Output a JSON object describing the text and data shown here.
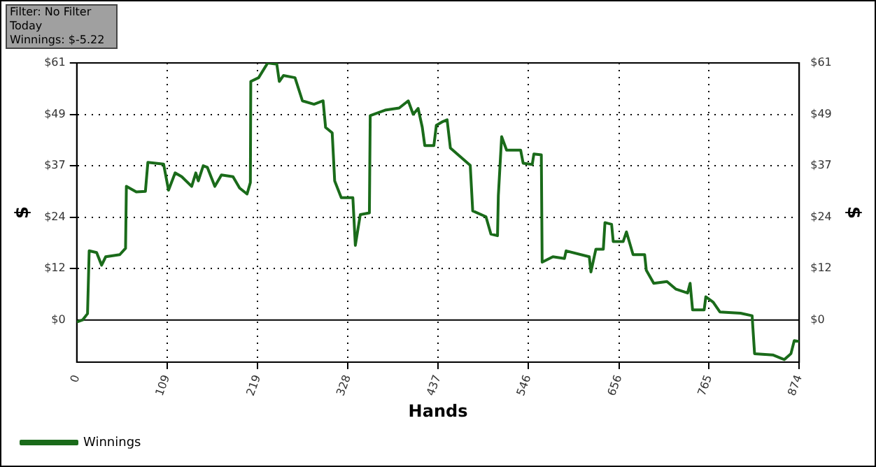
{
  "chart_data": {
    "type": "line",
    "xlabel": "Hands",
    "ylabel": "$",
    "y2label": "$",
    "annotations": [
      "Filter: No Filter",
      "Today",
      "Winnings: $-5.22"
    ],
    "x": [
      0,
      7,
      13,
      15,
      24,
      30,
      35,
      52,
      59,
      60,
      72,
      83,
      86,
      105,
      111,
      119,
      127,
      139,
      144,
      147,
      153,
      158,
      167,
      175,
      189,
      197,
      206,
      210,
      210.5,
      220,
      231,
      242,
      245,
      250,
      264,
      273,
      287,
      298,
      301,
      309,
      312,
      320,
      334,
      337,
      343,
      354,
      355,
      373,
      390,
      401,
      407,
      413,
      418,
      421,
      432,
      435,
      443,
      448,
      452,
      476,
      479,
      495,
      501,
      509,
      510,
      514,
      520,
      537,
      540,
      551,
      553,
      562,
      563,
      576,
      590,
      592,
      620,
      622,
      628,
      637,
      639,
      647,
      649,
      661,
      665,
      673,
      687,
      689,
      698,
      714,
      725,
      739,
      742,
      745,
      759,
      761,
      770,
      778,
      803,
      817,
      820,
      842,
      856,
      864,
      868,
      874
    ],
    "series": [
      {
        "name": "Winnings",
        "color": "#1a6b1a",
        "values": [
          -0.5,
          0,
          1.5,
          16.4,
          16,
          13,
          15,
          15.5,
          17,
          31.7,
          30.4,
          30.5,
          37.4,
          37,
          30.8,
          34.9,
          34,
          31.7,
          34.9,
          33,
          36.6,
          36.2,
          31.7,
          34.4,
          34,
          31.3,
          29.9,
          32.6,
          56.6,
          57.5,
          61,
          60.7,
          56.6,
          58,
          57.5,
          52,
          51.2,
          52,
          45.7,
          44.4,
          33,
          29,
          29,
          17.7,
          25,
          25.4,
          48.5,
          49.8,
          50.3,
          52,
          48.8,
          50.2,
          45.7,
          41.4,
          41.4,
          46.2,
          47.1,
          47.5,
          40.8,
          36.7,
          25.9,
          24.5,
          20.4,
          20,
          29.5,
          43.5,
          40.3,
          40.3,
          37.2,
          36.9,
          39.4,
          39.2,
          13.7,
          15,
          14.6,
          16.4,
          15,
          11.4,
          16.8,
          16.8,
          23.1,
          22.7,
          18.6,
          18.6,
          20.9,
          15.5,
          15.5,
          11.8,
          8.7,
          9.1,
          7.3,
          6.4,
          8.7,
          2.4,
          2.4,
          5.5,
          4.2,
          1.9,
          1.6,
          1,
          -8,
          -8.3,
          -9.4,
          -8,
          -4.9,
          -5.1
        ]
      }
    ],
    "xlim": [
      0,
      874
    ],
    "xticks": [
      0,
      109,
      219,
      328,
      437,
      546,
      656,
      765,
      874
    ],
    "ylim": [
      -10,
      61
    ],
    "yticks": [
      {
        "value": 0,
        "label": "$0"
      },
      {
        "value": 12.2,
        "label": "$12"
      },
      {
        "value": 24.4,
        "label": "$24"
      },
      {
        "value": 36.6,
        "label": "$37"
      },
      {
        "value": 48.8,
        "label": "$49"
      },
      {
        "value": 61,
        "label": "$61"
      }
    ],
    "y2lim": [
      -10,
      61
    ],
    "y2ticks": [
      {
        "value": 0,
        "label": "$0"
      },
      {
        "value": 12.2,
        "label": "$12"
      },
      {
        "value": 24.4,
        "label": "$24"
      },
      {
        "value": 36.6,
        "label": "$37"
      },
      {
        "value": 48.8,
        "label": "$49"
      },
      {
        "value": 61,
        "label": "$61"
      }
    ],
    "ref_lines": [
      {
        "axis": "y",
        "value": 0,
        "color": "#000000",
        "line_style": "solid"
      }
    ],
    "grid": true,
    "legend": "bottom left",
    "marker": "none",
    "line_style": "solid"
  }
}
